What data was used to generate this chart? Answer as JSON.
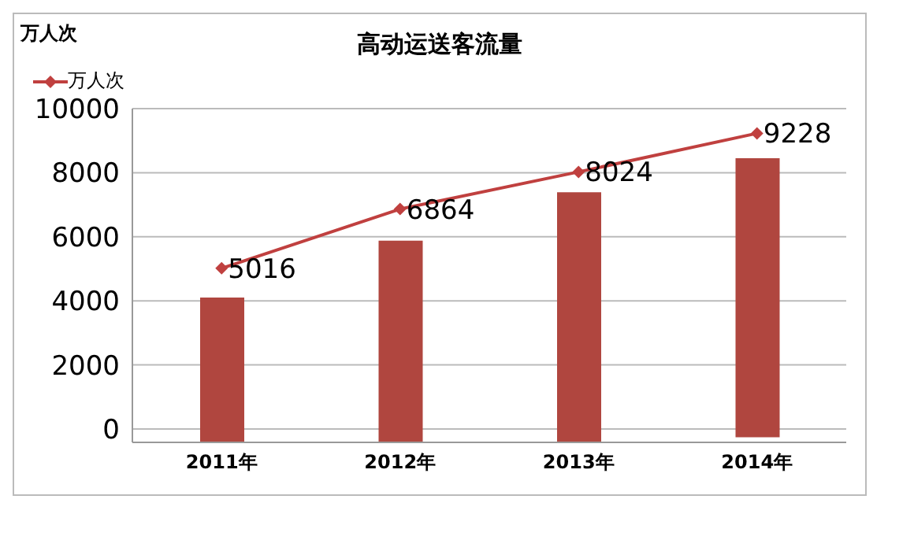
{
  "chart_data": {
    "type": "bar",
    "title": "高动运送客流量",
    "ylabel": "万人次",
    "categories": [
      "2011年",
      "2012年",
      "2013年",
      "2014年"
    ],
    "series": [
      {
        "color": "#b0463f",
        "base": [
          -420,
          -420,
          -420,
          -260
        ],
        "values": [
          4520,
          6300,
          7810,
          8710
        ]
      },
      {
        "type": "line",
        "name": "万人次",
        "color": "#c0403f",
        "values": [
          5016,
          6864,
          8024,
          9228
        ],
        "marker": "diamond",
        "data_labels": true
      }
    ],
    "ylim": [
      -420,
      10000
    ],
    "yticks": [
      0,
      2000,
      4000,
      6000,
      8000,
      10000
    ],
    "grid": "y",
    "legend": "top left"
  }
}
